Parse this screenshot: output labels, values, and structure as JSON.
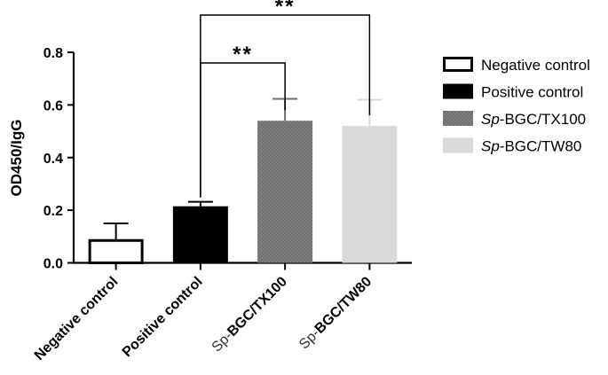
{
  "chart_data": {
    "type": "bar",
    "title": "",
    "xlabel": "",
    "ylabel": "OD450/IgG",
    "ylim": [
      0,
      0.8
    ],
    "yticks": [
      {
        "value": 0.0,
        "label": "0.0"
      },
      {
        "value": 0.2,
        "label": "0.2"
      },
      {
        "value": 0.4,
        "label": "0.4"
      },
      {
        "value": 0.6,
        "label": "0.6"
      },
      {
        "value": 0.8,
        "label": "0.8"
      }
    ],
    "grid": false,
    "legend_position": "right",
    "categories": [
      {
        "prefix": "",
        "main": "Negative control"
      },
      {
        "prefix": "",
        "main": "Positive control"
      },
      {
        "prefix": "Sp-",
        "main": "BGC/TX100"
      },
      {
        "prefix": "Sp-",
        "main": "BGC/TW80"
      }
    ],
    "bars": [
      {
        "value": 0.085,
        "error": 0.065,
        "fill": "#ffffff",
        "stroke": "#000000",
        "pattern": "none"
      },
      {
        "value": 0.215,
        "error": 0.017,
        "fill": "#000000",
        "stroke": "#000000",
        "pattern": "none"
      },
      {
        "value": 0.54,
        "error": 0.083,
        "fill": "#6e6e6e",
        "stroke": "#6e6e6e",
        "pattern": "dots"
      },
      {
        "value": 0.52,
        "error": 0.1,
        "fill": "#d9d9d9",
        "stroke": "#d9d9d9",
        "pattern": "none"
      }
    ],
    "legend": [
      {
        "prefix": "",
        "label": "Negative control",
        "fill": "#ffffff",
        "stroke": "#000000",
        "pattern": "none"
      },
      {
        "prefix": "",
        "label": "Positive control",
        "fill": "#000000",
        "stroke": "#000000",
        "pattern": "none"
      },
      {
        "prefix": "Sp",
        "label": "-BGC/TX100",
        "fill": "#6e6e6e",
        "stroke": "#6e6e6e",
        "pattern": "dots"
      },
      {
        "prefix": "Sp",
        "label": "-BGC/TW80",
        "fill": "#d9d9d9",
        "stroke": "#d9d9d9",
        "pattern": "none"
      }
    ],
    "significance": [
      {
        "from": 1,
        "to": 2,
        "label": "**"
      },
      {
        "from": 1,
        "to": 3,
        "label": "**"
      }
    ]
  }
}
